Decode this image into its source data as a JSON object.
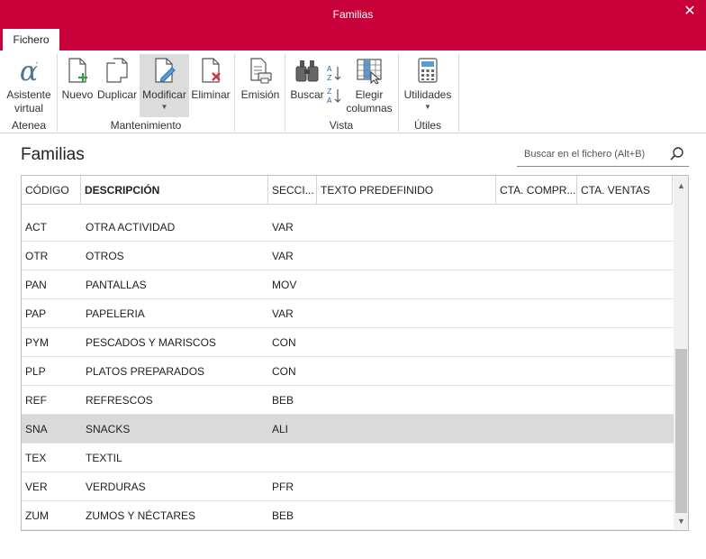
{
  "window": {
    "title": "Familias"
  },
  "tabs": [
    {
      "label": "Fichero"
    }
  ],
  "ribbon": {
    "groups": [
      {
        "label": "Atenea"
      },
      {
        "label": "Mantenimiento"
      },
      {
        "label": "Vista"
      },
      {
        "label": "Útiles"
      }
    ],
    "buttons": {
      "asistente_l1": "Asistente",
      "asistente_l2": "virtual",
      "nuevo": "Nuevo",
      "duplicar": "Duplicar",
      "modificar": "Modificar",
      "eliminar": "Eliminar",
      "emision": "Emisión",
      "buscar": "Buscar",
      "elegir_l1": "Elegir",
      "elegir_l2": "columnas",
      "utilidades": "Utilidades"
    }
  },
  "page": {
    "title": "Familias"
  },
  "search": {
    "placeholder": "Buscar en el fichero (Alt+B)"
  },
  "table": {
    "columns": [
      "CÓDIGO",
      "DESCRIPCIÓN",
      "SECCI...",
      "TEXTO PREDEFINIDO",
      "CTA. COMPR...",
      "CTA. VENTAS"
    ],
    "rows": [
      {
        "codigo": "ACT",
        "descripcion": "OTRA ACTIVIDAD",
        "seccion": "VAR"
      },
      {
        "codigo": "OTR",
        "descripcion": "OTROS",
        "seccion": "VAR"
      },
      {
        "codigo": "PAN",
        "descripcion": "PANTALLAS",
        "seccion": "MOV"
      },
      {
        "codigo": "PAP",
        "descripcion": "PAPELERIA",
        "seccion": "VAR"
      },
      {
        "codigo": "PYM",
        "descripcion": "PESCADOS Y MARISCOS",
        "seccion": "CON"
      },
      {
        "codigo": "PLP",
        "descripcion": "PLATOS PREPARADOS",
        "seccion": "CON"
      },
      {
        "codigo": "REF",
        "descripcion": "REFRESCOS",
        "seccion": "BEB"
      },
      {
        "codigo": "SNA",
        "descripcion": "SNACKS",
        "seccion": "ALI",
        "selected": true
      },
      {
        "codigo": "TEX",
        "descripcion": "TEXTIL",
        "seccion": ""
      },
      {
        "codigo": "VER",
        "descripcion": "VERDURAS",
        "seccion": "PFR"
      },
      {
        "codigo": "ZUM",
        "descripcion": "ZUMOS Y NÉCTARES",
        "seccion": "BEB"
      }
    ]
  },
  "colors": {
    "accent": "#c8003a",
    "selected_row": "#dadada"
  }
}
